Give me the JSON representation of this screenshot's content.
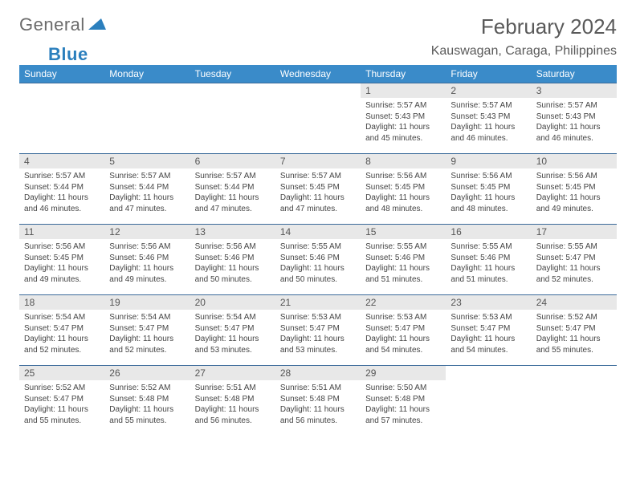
{
  "brand": {
    "text1": "General",
    "text2": "Blue"
  },
  "title": "February 2024",
  "location": "Kauswagan, Caraga, Philippines",
  "colors": {
    "header_bg": "#3a8bc9",
    "header_text": "#ffffff",
    "row_border": "#3a6a9a",
    "daynum_bg": "#e8e8e8",
    "text": "#444444",
    "brand_gray": "#6b6b6b",
    "brand_blue": "#2b7fbd"
  },
  "day_names": [
    "Sunday",
    "Monday",
    "Tuesday",
    "Wednesday",
    "Thursday",
    "Friday",
    "Saturday"
  ],
  "weeks": [
    [
      null,
      null,
      null,
      null,
      {
        "n": "1",
        "sr": "Sunrise: 5:57 AM",
        "ss": "Sunset: 5:43 PM",
        "dl1": "Daylight: 11 hours",
        "dl2": "and 45 minutes."
      },
      {
        "n": "2",
        "sr": "Sunrise: 5:57 AM",
        "ss": "Sunset: 5:43 PM",
        "dl1": "Daylight: 11 hours",
        "dl2": "and 46 minutes."
      },
      {
        "n": "3",
        "sr": "Sunrise: 5:57 AM",
        "ss": "Sunset: 5:43 PM",
        "dl1": "Daylight: 11 hours",
        "dl2": "and 46 minutes."
      }
    ],
    [
      {
        "n": "4",
        "sr": "Sunrise: 5:57 AM",
        "ss": "Sunset: 5:44 PM",
        "dl1": "Daylight: 11 hours",
        "dl2": "and 46 minutes."
      },
      {
        "n": "5",
        "sr": "Sunrise: 5:57 AM",
        "ss": "Sunset: 5:44 PM",
        "dl1": "Daylight: 11 hours",
        "dl2": "and 47 minutes."
      },
      {
        "n": "6",
        "sr": "Sunrise: 5:57 AM",
        "ss": "Sunset: 5:44 PM",
        "dl1": "Daylight: 11 hours",
        "dl2": "and 47 minutes."
      },
      {
        "n": "7",
        "sr": "Sunrise: 5:57 AM",
        "ss": "Sunset: 5:45 PM",
        "dl1": "Daylight: 11 hours",
        "dl2": "and 47 minutes."
      },
      {
        "n": "8",
        "sr": "Sunrise: 5:56 AM",
        "ss": "Sunset: 5:45 PM",
        "dl1": "Daylight: 11 hours",
        "dl2": "and 48 minutes."
      },
      {
        "n": "9",
        "sr": "Sunrise: 5:56 AM",
        "ss": "Sunset: 5:45 PM",
        "dl1": "Daylight: 11 hours",
        "dl2": "and 48 minutes."
      },
      {
        "n": "10",
        "sr": "Sunrise: 5:56 AM",
        "ss": "Sunset: 5:45 PM",
        "dl1": "Daylight: 11 hours",
        "dl2": "and 49 minutes."
      }
    ],
    [
      {
        "n": "11",
        "sr": "Sunrise: 5:56 AM",
        "ss": "Sunset: 5:45 PM",
        "dl1": "Daylight: 11 hours",
        "dl2": "and 49 minutes."
      },
      {
        "n": "12",
        "sr": "Sunrise: 5:56 AM",
        "ss": "Sunset: 5:46 PM",
        "dl1": "Daylight: 11 hours",
        "dl2": "and 49 minutes."
      },
      {
        "n": "13",
        "sr": "Sunrise: 5:56 AM",
        "ss": "Sunset: 5:46 PM",
        "dl1": "Daylight: 11 hours",
        "dl2": "and 50 minutes."
      },
      {
        "n": "14",
        "sr": "Sunrise: 5:55 AM",
        "ss": "Sunset: 5:46 PM",
        "dl1": "Daylight: 11 hours",
        "dl2": "and 50 minutes."
      },
      {
        "n": "15",
        "sr": "Sunrise: 5:55 AM",
        "ss": "Sunset: 5:46 PM",
        "dl1": "Daylight: 11 hours",
        "dl2": "and 51 minutes."
      },
      {
        "n": "16",
        "sr": "Sunrise: 5:55 AM",
        "ss": "Sunset: 5:46 PM",
        "dl1": "Daylight: 11 hours",
        "dl2": "and 51 minutes."
      },
      {
        "n": "17",
        "sr": "Sunrise: 5:55 AM",
        "ss": "Sunset: 5:47 PM",
        "dl1": "Daylight: 11 hours",
        "dl2": "and 52 minutes."
      }
    ],
    [
      {
        "n": "18",
        "sr": "Sunrise: 5:54 AM",
        "ss": "Sunset: 5:47 PM",
        "dl1": "Daylight: 11 hours",
        "dl2": "and 52 minutes."
      },
      {
        "n": "19",
        "sr": "Sunrise: 5:54 AM",
        "ss": "Sunset: 5:47 PM",
        "dl1": "Daylight: 11 hours",
        "dl2": "and 52 minutes."
      },
      {
        "n": "20",
        "sr": "Sunrise: 5:54 AM",
        "ss": "Sunset: 5:47 PM",
        "dl1": "Daylight: 11 hours",
        "dl2": "and 53 minutes."
      },
      {
        "n": "21",
        "sr": "Sunrise: 5:53 AM",
        "ss": "Sunset: 5:47 PM",
        "dl1": "Daylight: 11 hours",
        "dl2": "and 53 minutes."
      },
      {
        "n": "22",
        "sr": "Sunrise: 5:53 AM",
        "ss": "Sunset: 5:47 PM",
        "dl1": "Daylight: 11 hours",
        "dl2": "and 54 minutes."
      },
      {
        "n": "23",
        "sr": "Sunrise: 5:53 AM",
        "ss": "Sunset: 5:47 PM",
        "dl1": "Daylight: 11 hours",
        "dl2": "and 54 minutes."
      },
      {
        "n": "24",
        "sr": "Sunrise: 5:52 AM",
        "ss": "Sunset: 5:47 PM",
        "dl1": "Daylight: 11 hours",
        "dl2": "and 55 minutes."
      }
    ],
    [
      {
        "n": "25",
        "sr": "Sunrise: 5:52 AM",
        "ss": "Sunset: 5:47 PM",
        "dl1": "Daylight: 11 hours",
        "dl2": "and 55 minutes."
      },
      {
        "n": "26",
        "sr": "Sunrise: 5:52 AM",
        "ss": "Sunset: 5:48 PM",
        "dl1": "Daylight: 11 hours",
        "dl2": "and 55 minutes."
      },
      {
        "n": "27",
        "sr": "Sunrise: 5:51 AM",
        "ss": "Sunset: 5:48 PM",
        "dl1": "Daylight: 11 hours",
        "dl2": "and 56 minutes."
      },
      {
        "n": "28",
        "sr": "Sunrise: 5:51 AM",
        "ss": "Sunset: 5:48 PM",
        "dl1": "Daylight: 11 hours",
        "dl2": "and 56 minutes."
      },
      {
        "n": "29",
        "sr": "Sunrise: 5:50 AM",
        "ss": "Sunset: 5:48 PM",
        "dl1": "Daylight: 11 hours",
        "dl2": "and 57 minutes."
      },
      null,
      null
    ]
  ]
}
